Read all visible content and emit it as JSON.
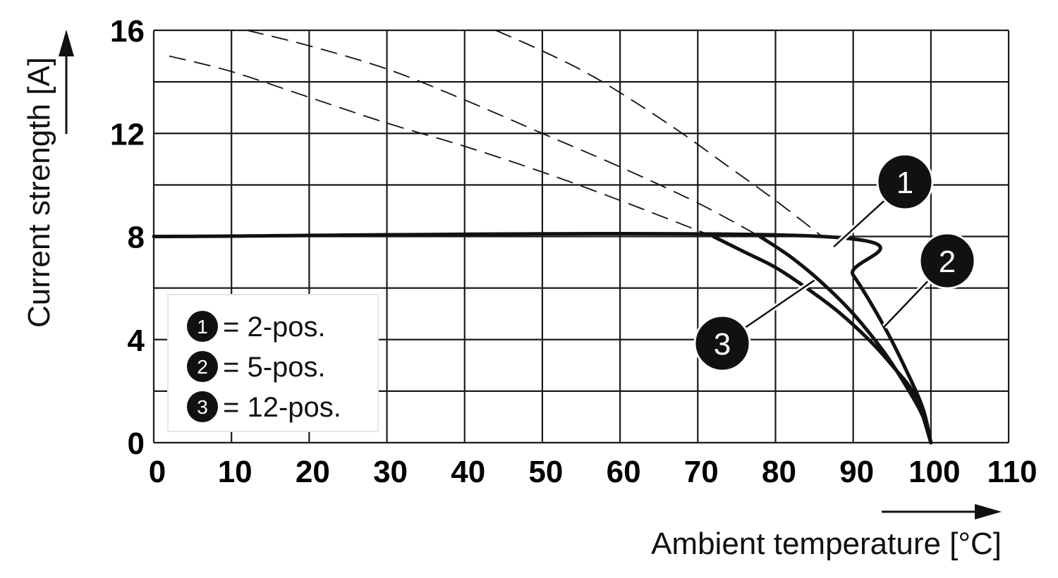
{
  "chart_data": {
    "type": "line",
    "xlabel": "Ambient temperature [°C]",
    "ylabel": "Current strength [A]",
    "xlim": [
      0,
      110
    ],
    "ylim": [
      0,
      16
    ],
    "x_ticks": [
      0,
      10,
      20,
      30,
      40,
      50,
      60,
      70,
      80,
      90,
      100,
      110
    ],
    "y_ticks": [
      0,
      4,
      8,
      12,
      16
    ],
    "y_minor_grid": [
      2,
      6,
      10,
      14
    ],
    "grid": true,
    "legend_position": "bottom-left",
    "legend": [
      {
        "marker": "1",
        "text": "= 2-pos."
      },
      {
        "marker": "2",
        "text": "= 5-pos."
      },
      {
        "marker": "3",
        "text": "= 12-pos."
      }
    ],
    "series": [
      {
        "marker": "1",
        "line_style": "solid",
        "x": [
          0,
          86,
          90,
          94,
          97,
          99,
          100
        ],
        "y": [
          8,
          8,
          6.5,
          4.5,
          2.7,
          1.3,
          0
        ]
      },
      {
        "marker": "2",
        "line_style": "solid",
        "x": [
          78,
          82,
          86,
          90,
          94,
          97,
          99,
          100
        ],
        "y": [
          8,
          7.2,
          6.2,
          5.0,
          3.5,
          2.1,
          1.0,
          0
        ]
      },
      {
        "marker": "3",
        "line_style": "solid",
        "x": [
          72,
          76,
          80,
          84,
          88,
          92,
          95,
          98,
          100
        ],
        "y": [
          8,
          7.4,
          6.8,
          6.0,
          5.1,
          4.0,
          3.0,
          1.8,
          0
        ]
      },
      {
        "marker": "1",
        "line_style": "dashed",
        "x": [
          44,
          50,
          56,
          62,
          68,
          74,
          80,
          86
        ],
        "y": [
          16,
          15.2,
          14.3,
          13.2,
          12.0,
          10.7,
          9.4,
          8.0
        ]
      },
      {
        "marker": "2",
        "line_style": "dashed",
        "x": [
          12,
          20,
          30,
          40,
          50,
          60,
          70,
          78
        ],
        "y": [
          16,
          15.4,
          14.5,
          13.3,
          12.0,
          10.7,
          9.3,
          8.0
        ]
      },
      {
        "marker": "3",
        "line_style": "dashed",
        "x": [
          2,
          10,
          20,
          30,
          40,
          50,
          60,
          72
        ],
        "y": [
          15,
          14.4,
          13.4,
          12.4,
          11.5,
          10.5,
          9.4,
          8.0
        ]
      }
    ],
    "callouts": [
      {
        "marker": "1",
        "x": 87.5,
        "y": 7.6
      },
      {
        "marker": "2",
        "x": 94,
        "y": 4.5
      },
      {
        "marker": "3",
        "x": 85,
        "y": 6.3
      }
    ]
  }
}
